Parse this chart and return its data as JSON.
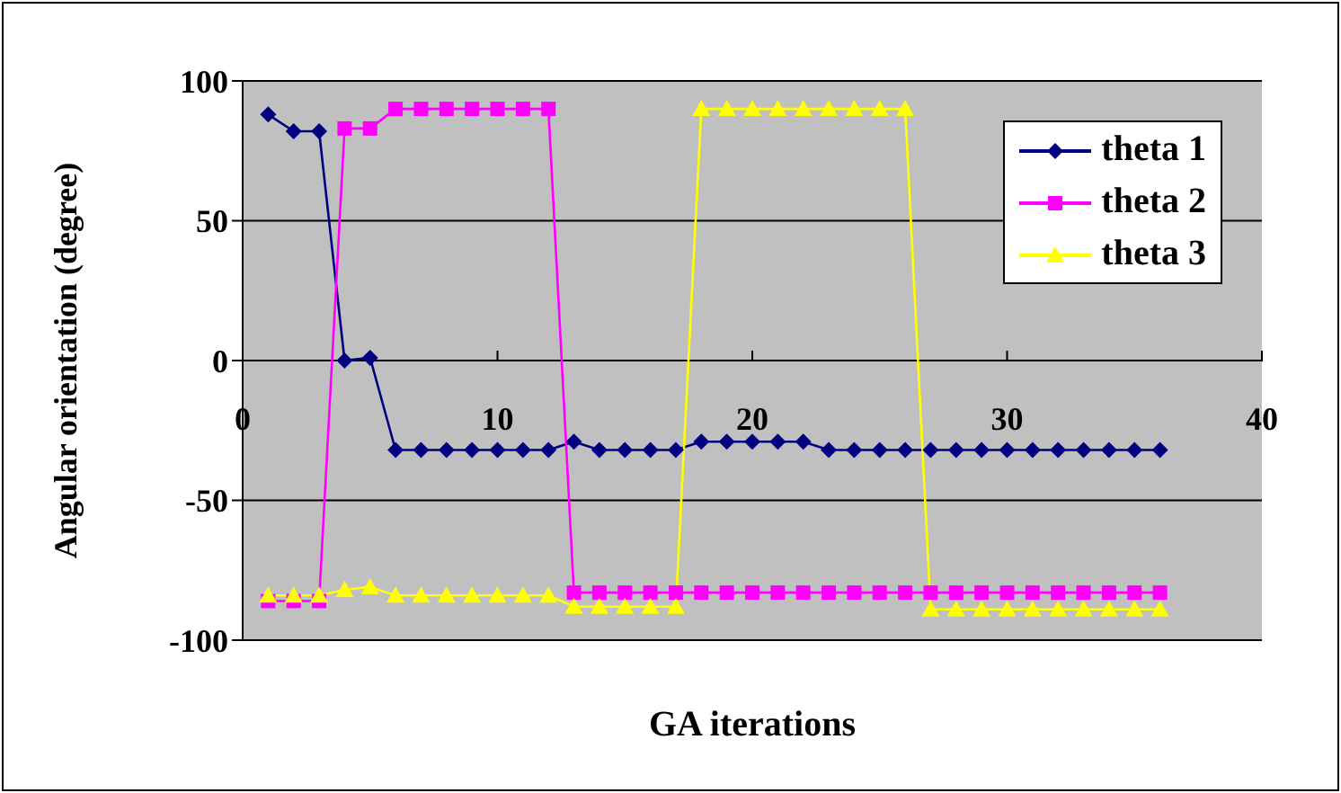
{
  "chart_data": {
    "type": "line",
    "xlabel": "GA iterations",
    "ylabel": "Angular orientation (degree)",
    "x": [
      1,
      2,
      3,
      4,
      5,
      6,
      7,
      8,
      9,
      10,
      11,
      12,
      13,
      14,
      15,
      16,
      17,
      18,
      19,
      20,
      21,
      22,
      23,
      24,
      25,
      26,
      27,
      28,
      29,
      30,
      31,
      32,
      33,
      34,
      35,
      36
    ],
    "xlim": [
      0,
      40
    ],
    "xticks": [
      0,
      10,
      20,
      30,
      40
    ],
    "ylim": [
      -100,
      100
    ],
    "yticks": [
      -100,
      -50,
      0,
      50,
      100
    ],
    "grid": "y",
    "legend": "top right",
    "line_style": "solid",
    "series": [
      {
        "name": "theta 1",
        "color": "#000080",
        "marker": "diamond",
        "values": [
          88,
          82,
          82,
          0,
          1,
          -32,
          -32,
          -32,
          -32,
          -32,
          -32,
          -32,
          -29,
          -32,
          -32,
          -32,
          -32,
          -29,
          -29,
          -29,
          -29,
          -29,
          -32,
          -32,
          -32,
          -32,
          -32,
          -32,
          -32,
          -32,
          -32,
          -32,
          -32,
          -32,
          -32,
          -32
        ]
      },
      {
        "name": "theta 2",
        "color": "#ff00ff",
        "marker": "square",
        "values": [
          -86,
          -86,
          -86,
          83,
          83,
          90,
          90,
          90,
          90,
          90,
          90,
          90,
          -83,
          -83,
          -83,
          -83,
          -83,
          -83,
          -83,
          -83,
          -83,
          -83,
          -83,
          -83,
          -83,
          -83,
          -83,
          -83,
          -83,
          -83,
          -83,
          -83,
          -83,
          -83,
          -83,
          -83
        ]
      },
      {
        "name": "theta 3",
        "color": "#ffff00",
        "marker": "triangle",
        "values": [
          -84,
          -84,
          -84,
          -82,
          -81,
          -84,
          -84,
          -84,
          -84,
          -84,
          -84,
          -84,
          -88,
          -88,
          -88,
          -88,
          -88,
          90,
          90,
          90,
          90,
          90,
          90,
          90,
          90,
          90,
          -89,
          -89,
          -89,
          -89,
          -89,
          -89,
          -89,
          -89,
          -89,
          -89
        ]
      }
    ]
  }
}
